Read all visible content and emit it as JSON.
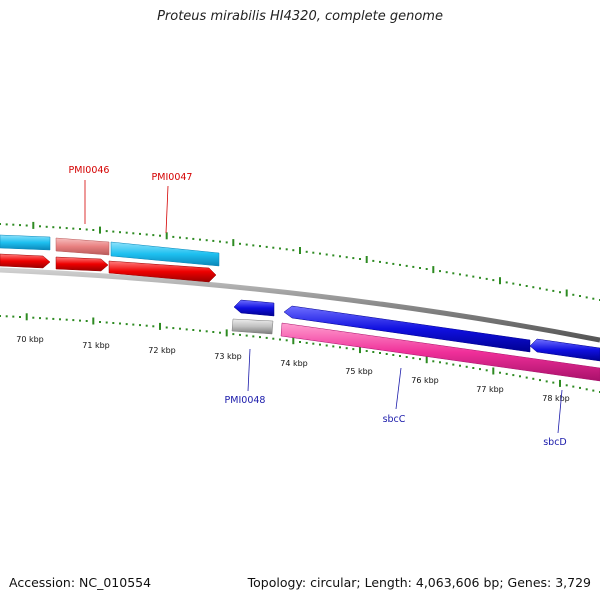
{
  "title": "Proteus mirabilis HI4320, complete genome",
  "footer": {
    "accession": "Accession: NC_010554",
    "topology": "Topology: circular; Length: 4,063,606 bp; Genes: 3,729"
  },
  "colors": {
    "background": "#ffffff",
    "tick": "#2e8b22",
    "backbone": "#808080",
    "label_red": "#d40000",
    "label_blue": "#1a1aaa",
    "gene_cyan": "#1ec0f0",
    "gene_red": "#ee0000",
    "gene_pink": "#e88080",
    "gene_blue": "#1010e0",
    "gene_magenta": "#f0309a",
    "gene_gray": "#b8b8b8"
  },
  "scale": {
    "unit": "kbp",
    "labels": [
      "70 kbp",
      "71 kbp",
      "72 kbp",
      "73 kbp",
      "74 kbp",
      "75 kbp",
      "76 kbp",
      "77 kbp",
      "78 kbp"
    ]
  },
  "genes": {
    "labels": [
      {
        "text": "PMI0046",
        "strand": "forward"
      },
      {
        "text": "PMI0047",
        "strand": "forward"
      },
      {
        "text": "PMI0048",
        "strand": "reverse"
      },
      {
        "text": "sbcC",
        "strand": "reverse"
      },
      {
        "text": "sbcD",
        "strand": "reverse"
      }
    ]
  }
}
